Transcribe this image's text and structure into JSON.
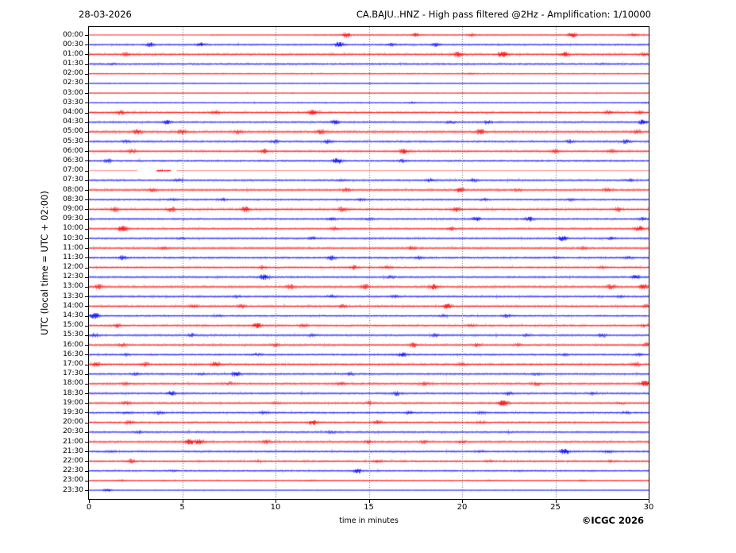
{
  "page": {
    "date_label": "28-03-2026",
    "copyright": "©ICGC 2026"
  },
  "chart_data": {
    "type": "helicorder-seismogram",
    "title": "CA.BAJU..HNZ - High pass filtered @2Hz - Amplification: 1/10000",
    "station": "CA.BAJU..HNZ",
    "filter": "High pass filtered @2Hz",
    "amplification": "1/10000",
    "date": "28-03-2026",
    "xlabel": "time in minutes",
    "ylabel": "UTC (local time = UTC + 02:00)",
    "x_range": [
      0,
      30
    ],
    "x_ticks": [
      0,
      5,
      10,
      15,
      20,
      25,
      30
    ],
    "grid_minutes": [
      5,
      10,
      15,
      20,
      25
    ],
    "grid_on": true,
    "row_interval_minutes": 30,
    "trace_colors": {
      "red": "#ff0000",
      "blue": "#0000ff"
    },
    "grid_color": "#555555",
    "rows": [
      {
        "time": "00:00",
        "color": "red",
        "amp": 1.4,
        "flat_until": 6.5,
        "bursts": [
          [
            13.8,
            2.0
          ],
          [
            17.5,
            1.7
          ],
          [
            20.5,
            1.4
          ],
          [
            25.9,
            2.0
          ],
          [
            29.2,
            1.6
          ]
        ]
      },
      {
        "time": "00:30",
        "color": "blue",
        "amp": 1.5,
        "bursts": [
          [
            3.3,
            1.7
          ],
          [
            6.0,
            1.8
          ],
          [
            13.4,
            2.2
          ],
          [
            16.2,
            1.5
          ],
          [
            18.6,
            1.6
          ]
        ]
      },
      {
        "time": "01:00",
        "color": "red",
        "amp": 1.9,
        "bursts": [
          [
            2.0,
            1.4
          ],
          [
            19.8,
            1.7
          ],
          [
            22.2,
            2.5
          ],
          [
            25.5,
            1.8
          ],
          [
            29.8,
            1.5
          ]
        ]
      },
      {
        "time": "01:30",
        "color": "blue",
        "amp": 1.7,
        "bursts": [
          [
            1.2,
            1.3
          ],
          [
            27.5,
            1.2
          ]
        ]
      },
      {
        "time": "02:00",
        "color": "red",
        "amp": 1.1,
        "bursts": [
          [
            20.5,
            1.3
          ]
        ]
      },
      {
        "time": "02:30",
        "color": "blue",
        "amp": 1.0,
        "bursts": [
          [
            17.5,
            1.2
          ]
        ]
      },
      {
        "time": "03:00",
        "color": "red",
        "amp": 1.0,
        "bursts": [
          [
            25.0,
            1.15
          ]
        ]
      },
      {
        "time": "03:30",
        "color": "blue",
        "amp": 1.0,
        "bursts": [
          [
            17.3,
            1.5
          ],
          [
            29.8,
            1.3
          ]
        ]
      },
      {
        "time": "04:00",
        "color": "red",
        "amp": 1.9,
        "bursts": [
          [
            1.7,
            1.6
          ],
          [
            6.8,
            1.5
          ],
          [
            12.0,
            1.9
          ],
          [
            27.9,
            1.6
          ],
          [
            29.5,
            1.4
          ]
        ]
      },
      {
        "time": "04:30",
        "color": "blue",
        "amp": 1.6,
        "bursts": [
          [
            4.2,
            1.7
          ],
          [
            13.2,
            1.8
          ],
          [
            19.4,
            1.5
          ],
          [
            21.4,
            1.6
          ],
          [
            29.7,
            1.9
          ]
        ]
      },
      {
        "time": "05:00",
        "color": "red",
        "amp": 2.1,
        "bursts": [
          [
            2.6,
            1.7
          ],
          [
            5.0,
            1.6
          ],
          [
            8.0,
            1.5
          ],
          [
            12.4,
            1.6
          ],
          [
            21.0,
            1.7
          ],
          [
            29.4,
            1.5
          ]
        ]
      },
      {
        "time": "05:30",
        "color": "blue",
        "amp": 1.7,
        "bursts": [
          [
            2.0,
            1.4
          ],
          [
            10.0,
            1.5
          ],
          [
            12.8,
            1.6
          ],
          [
            25.8,
            1.5
          ],
          [
            28.8,
            1.6
          ]
        ]
      },
      {
        "time": "06:00",
        "color": "red",
        "amp": 1.9,
        "bursts": [
          [
            2.3,
            1.5
          ],
          [
            9.4,
            1.6
          ],
          [
            16.9,
            1.8
          ],
          [
            25.0,
            1.5
          ],
          [
            28.0,
            1.4
          ]
        ]
      },
      {
        "time": "06:30",
        "color": "blue",
        "amp": 1.6,
        "bursts": [
          [
            1.0,
            1.5
          ],
          [
            13.3,
            2.4
          ],
          [
            16.8,
            1.5
          ]
        ]
      },
      {
        "time": "07:00",
        "color": "red",
        "amp": 0.55,
        "fade": 0.5,
        "gaps": [
          [
            2.6,
            3.6
          ],
          [
            4.4,
            4.7
          ]
        ],
        "dark": [
          3.6,
          4.4
        ],
        "bursts": []
      },
      {
        "time": "07:30",
        "color": "blue",
        "amp": 1.6,
        "bursts": [
          [
            4.8,
            1.5
          ],
          [
            13.5,
            1.3
          ],
          [
            18.3,
            1.6
          ],
          [
            20.6,
            1.5
          ],
          [
            29.0,
            1.4
          ]
        ]
      },
      {
        "time": "08:00",
        "color": "red",
        "amp": 1.9,
        "bursts": [
          [
            3.4,
            1.5
          ],
          [
            13.8,
            1.5
          ],
          [
            19.9,
            1.8
          ],
          [
            23.0,
            1.3
          ],
          [
            27.8,
            1.5
          ]
        ]
      },
      {
        "time": "08:30",
        "color": "blue",
        "amp": 1.5,
        "bursts": [
          [
            4.5,
            1.3
          ],
          [
            7.2,
            1.5
          ],
          [
            14.6,
            1.4
          ],
          [
            21.2,
            1.5
          ],
          [
            25.8,
            1.3
          ]
        ]
      },
      {
        "time": "09:00",
        "color": "red",
        "amp": 2.1,
        "bursts": [
          [
            1.4,
            1.5
          ],
          [
            4.4,
            1.6
          ],
          [
            8.4,
            1.8
          ],
          [
            13.6,
            1.5
          ],
          [
            19.7,
            1.6
          ],
          [
            28.4,
            1.5
          ]
        ]
      },
      {
        "time": "09:30",
        "color": "blue",
        "amp": 1.6,
        "bursts": [
          [
            13.0,
            1.5
          ],
          [
            15.0,
            1.4
          ],
          [
            20.8,
            1.8
          ],
          [
            23.6,
            1.8
          ],
          [
            29.7,
            1.5
          ]
        ]
      },
      {
        "time": "10:00",
        "color": "red",
        "amp": 1.8,
        "bursts": [
          [
            1.8,
            2.2
          ],
          [
            13.2,
            1.5
          ],
          [
            19.4,
            1.5
          ],
          [
            29.5,
            1.8
          ]
        ]
      },
      {
        "time": "10:30",
        "color": "blue",
        "amp": 1.6,
        "bursts": [
          [
            5.0,
            1.3
          ],
          [
            12.0,
            1.5
          ],
          [
            25.4,
            2.2
          ],
          [
            28.0,
            1.5
          ]
        ]
      },
      {
        "time": "11:00",
        "color": "red",
        "amp": 1.8,
        "bursts": [
          [
            4.0,
            1.4
          ],
          [
            17.3,
            1.5
          ],
          [
            26.5,
            1.3
          ]
        ]
      },
      {
        "time": "11:30",
        "color": "blue",
        "amp": 1.7,
        "bursts": [
          [
            1.8,
            1.6
          ],
          [
            13.0,
            1.6
          ],
          [
            17.7,
            1.5
          ],
          [
            25.0,
            1.3
          ],
          [
            28.9,
            1.4
          ]
        ]
      },
      {
        "time": "12:00",
        "color": "red",
        "amp": 1.8,
        "bursts": [
          [
            9.3,
            1.4
          ],
          [
            14.2,
            1.6
          ],
          [
            16.0,
            1.5
          ],
          [
            27.5,
            1.4
          ]
        ]
      },
      {
        "time": "12:30",
        "color": "blue",
        "amp": 1.7,
        "bursts": [
          [
            9.4,
            2.0
          ],
          [
            16.2,
            1.4
          ],
          [
            29.3,
            1.8
          ]
        ]
      },
      {
        "time": "13:00",
        "color": "red",
        "amp": 2.1,
        "bursts": [
          [
            0.5,
            1.6
          ],
          [
            10.8,
            1.5
          ],
          [
            14.8,
            1.6
          ],
          [
            18.5,
            1.8
          ],
          [
            28.0,
            1.6
          ],
          [
            29.7,
            1.8
          ]
        ]
      },
      {
        "time": "13:30",
        "color": "blue",
        "amp": 1.7,
        "bursts": [
          [
            8.0,
            1.3
          ],
          [
            13.0,
            1.5
          ],
          [
            16.4,
            1.4
          ],
          [
            28.5,
            1.3
          ]
        ]
      },
      {
        "time": "14:00",
        "color": "red",
        "amp": 1.8,
        "bursts": [
          [
            5.6,
            1.5
          ],
          [
            8.2,
            1.5
          ],
          [
            13.6,
            1.5
          ],
          [
            19.2,
            1.8
          ],
          [
            29.9,
            1.5
          ]
        ]
      },
      {
        "time": "14:30",
        "color": "blue",
        "amp": 1.6,
        "bursts": [
          [
            0.3,
            2.2
          ],
          [
            7.0,
            1.3
          ],
          [
            19.0,
            1.4
          ],
          [
            22.4,
            1.5
          ]
        ]
      },
      {
        "time": "15:00",
        "color": "red",
        "amp": 1.8,
        "bursts": [
          [
            1.5,
            1.5
          ],
          [
            9.0,
            2.2
          ],
          [
            11.5,
            1.5
          ],
          [
            20.5,
            1.5
          ],
          [
            29.8,
            1.5
          ]
        ]
      },
      {
        "time": "15:30",
        "color": "blue",
        "amp": 1.7,
        "bursts": [
          [
            0.3,
            1.5
          ],
          [
            5.5,
            1.5
          ],
          [
            12.0,
            1.4
          ],
          [
            18.6,
            1.5
          ],
          [
            23.5,
            1.4
          ],
          [
            27.5,
            1.5
          ]
        ]
      },
      {
        "time": "16:00",
        "color": "red",
        "amp": 1.8,
        "bursts": [
          [
            1.8,
            1.5
          ],
          [
            10.0,
            1.4
          ],
          [
            17.4,
            1.6
          ],
          [
            20.8,
            1.5
          ],
          [
            23.0,
            1.4
          ],
          [
            29.9,
            1.5
          ]
        ]
      },
      {
        "time": "16:30",
        "color": "blue",
        "amp": 1.6,
        "bursts": [
          [
            2.0,
            1.3
          ],
          [
            9.0,
            1.4
          ],
          [
            16.8,
            1.8
          ],
          [
            25.5,
            1.3
          ],
          [
            29.5,
            1.4
          ]
        ]
      },
      {
        "time": "17:00",
        "color": "red",
        "amp": 1.9,
        "bursts": [
          [
            0.4,
            1.6
          ],
          [
            3.0,
            1.5
          ],
          [
            6.8,
            1.8
          ],
          [
            20.0,
            1.3
          ],
          [
            29.3,
            1.4
          ]
        ]
      },
      {
        "time": "17:30",
        "color": "blue",
        "amp": 1.7,
        "bursts": [
          [
            2.5,
            1.4
          ],
          [
            6.0,
            1.4
          ],
          [
            7.9,
            1.8
          ],
          [
            14.0,
            1.4
          ],
          [
            24.0,
            1.3
          ]
        ]
      },
      {
        "time": "18:00",
        "color": "red",
        "amp": 1.9,
        "bursts": [
          [
            2.0,
            1.4
          ],
          [
            7.5,
            1.4
          ],
          [
            13.5,
            1.5
          ],
          [
            18.0,
            1.4
          ],
          [
            24.0,
            1.5
          ],
          [
            29.8,
            2.2
          ]
        ]
      },
      {
        "time": "18:30",
        "color": "blue",
        "amp": 1.7,
        "bursts": [
          [
            4.4,
            1.8
          ],
          [
            16.5,
            1.6
          ],
          [
            22.5,
            1.5
          ],
          [
            27.0,
            1.4
          ]
        ]
      },
      {
        "time": "19:00",
        "color": "red",
        "amp": 1.8,
        "bursts": [
          [
            2.0,
            1.5
          ],
          [
            10.0,
            1.3
          ],
          [
            15.0,
            1.4
          ],
          [
            22.2,
            2.3
          ],
          [
            28.5,
            1.3
          ]
        ]
      },
      {
        "time": "19:30",
        "color": "blue",
        "amp": 1.7,
        "bursts": [
          [
            2.0,
            1.4
          ],
          [
            3.8,
            1.5
          ],
          [
            9.4,
            1.4
          ],
          [
            17.2,
            1.6
          ],
          [
            21.0,
            1.3
          ],
          [
            28.8,
            1.4
          ]
        ]
      },
      {
        "time": "20:00",
        "color": "red",
        "amp": 1.7,
        "bursts": [
          [
            2.2,
            1.5
          ],
          [
            12.0,
            1.9
          ],
          [
            15.5,
            1.6
          ],
          [
            21.0,
            1.3
          ]
        ]
      },
      {
        "time": "20:30",
        "color": "blue",
        "amp": 1.7,
        "bursts": [
          [
            2.7,
            1.4
          ],
          [
            13.0,
            1.3
          ],
          [
            22.5,
            1.2
          ]
        ]
      },
      {
        "time": "21:00",
        "color": "red",
        "amp": 1.8,
        "bursts": [
          [
            5.4,
            2.2
          ],
          [
            5.9,
            2.0
          ],
          [
            9.5,
            1.5
          ],
          [
            15.0,
            1.5
          ],
          [
            18.0,
            1.4
          ],
          [
            20.0,
            1.4
          ]
        ]
      },
      {
        "time": "21:30",
        "color": "blue",
        "amp": 1.7,
        "bursts": [
          [
            1.2,
            1.3
          ],
          [
            21.0,
            1.3
          ],
          [
            25.5,
            2.2
          ],
          [
            27.8,
            1.5
          ]
        ]
      },
      {
        "time": "22:00",
        "color": "red",
        "amp": 1.7,
        "bursts": [
          [
            2.3,
            1.5
          ],
          [
            9.0,
            1.3
          ],
          [
            15.5,
            1.4
          ],
          [
            21.5,
            1.3
          ],
          [
            28.0,
            1.3
          ]
        ]
      },
      {
        "time": "22:30",
        "color": "blue",
        "amp": 1.5,
        "bursts": [
          [
            4.5,
            1.3
          ],
          [
            14.4,
            1.9
          ],
          [
            23.0,
            1.2
          ]
        ]
      },
      {
        "time": "23:00",
        "color": "red",
        "amp": 1.1,
        "bursts": [
          [
            1.7,
            1.3
          ],
          [
            4.0,
            1.2
          ],
          [
            12.0,
            1.2
          ],
          [
            21.5,
            1.2
          ],
          [
            26.5,
            1.2
          ]
        ]
      },
      {
        "time": "23:30",
        "color": "blue",
        "amp": 0.9,
        "bursts": [
          [
            1.0,
            1.9
          ]
        ]
      }
    ]
  }
}
